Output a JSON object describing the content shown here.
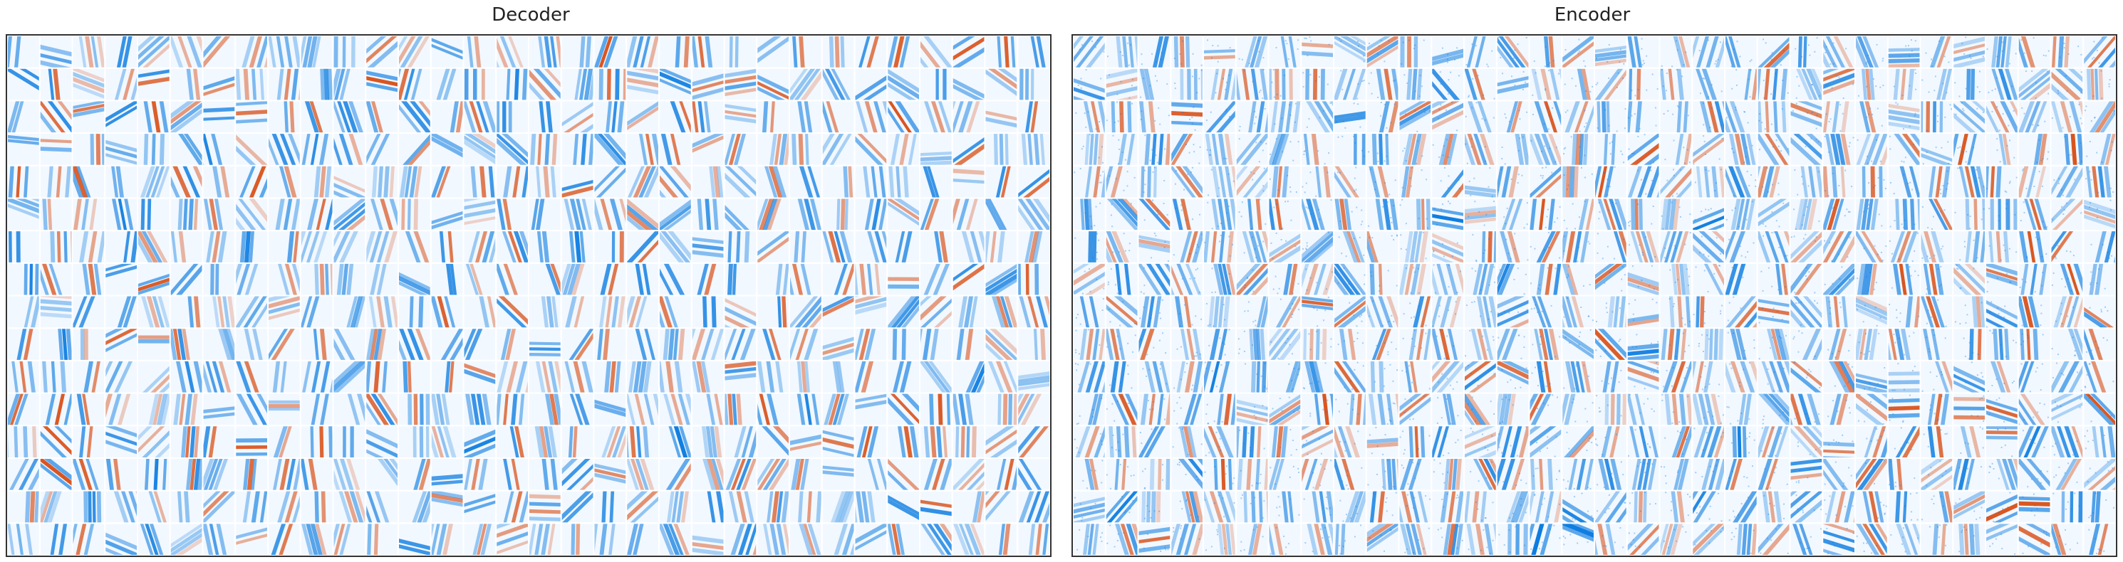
{
  "figure": {
    "panels": [
      {
        "id": "decoder",
        "title": "Decoder"
      },
      {
        "id": "encoder",
        "title": "Encoder"
      }
    ],
    "grid": {
      "rows": 16,
      "cols": 32
    },
    "colors": {
      "positive": "#d9541e",
      "negative": "#0a7be0",
      "neutral": "#ffffff",
      "frame": "#333333"
    }
  }
}
